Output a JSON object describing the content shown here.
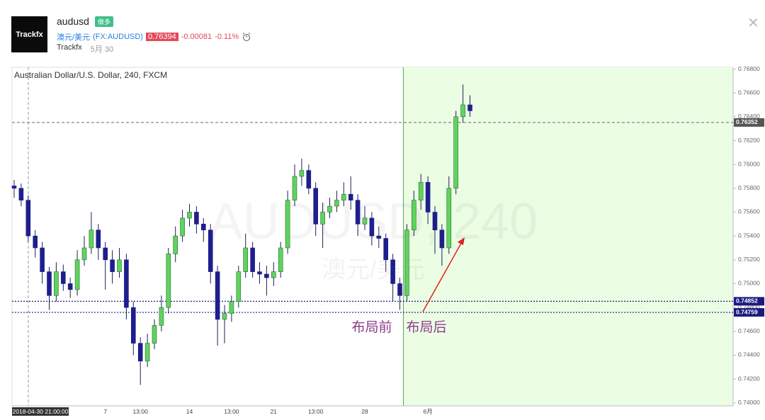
{
  "header": {
    "logo": "Trackfx",
    "symbol": "audusd",
    "badge": "做多",
    "name": "澳元/美元",
    "ticker": "(FX:AUDUSD)",
    "price": "0.76394",
    "change": "-0.00081",
    "change_pct": "-0.11%",
    "author": "Trackfx",
    "date": "5月 30"
  },
  "chart_data": {
    "type": "candlestick",
    "title": "Australian Dollar/U.S. Dollar, 240, FXCM",
    "watermark": "AUDUSD, 240",
    "watermark_sub": "澳元/美元",
    "categories": [
      "2018-04-30 21:00:00",
      null,
      null,
      null,
      null,
      null,
      null,
      null,
      null,
      null,
      null,
      null,
      null,
      "7",
      null,
      null,
      null,
      null,
      "13:00",
      null,
      null,
      null,
      null,
      null,
      null,
      "14",
      null,
      null,
      null,
      null,
      null,
      "13:00",
      null,
      null,
      null,
      null,
      null,
      "21",
      null,
      null,
      null,
      null,
      null,
      "13:00",
      null,
      null,
      null,
      null,
      null,
      null,
      "28",
      null,
      null,
      null,
      null,
      null,
      null,
      null,
      null,
      "6月",
      null,
      null,
      null,
      null,
      null,
      null
    ],
    "open": [
      0.7582,
      0.758,
      0.757,
      0.754,
      0.753,
      0.751,
      0.749,
      0.751,
      0.75,
      0.7495,
      0.752,
      0.753,
      0.7545,
      0.753,
      0.752,
      0.751,
      0.752,
      0.748,
      0.745,
      0.7435,
      0.745,
      0.7465,
      0.748,
      0.7525,
      0.754,
      0.7555,
      0.756,
      0.755,
      0.7545,
      0.751,
      0.747,
      0.7475,
      0.7485,
      0.751,
      0.753,
      0.751,
      0.7508,
      0.7505,
      0.751,
      0.753,
      0.757,
      0.759,
      0.7595,
      0.758,
      0.755,
      0.756,
      0.7565,
      0.757,
      0.7575,
      0.757,
      0.755,
      0.7555,
      0.754,
      0.7538,
      0.752,
      0.75,
      0.749,
      0.7545,
      0.757,
      0.7585,
      0.756,
      0.7545,
      0.753,
      0.758,
      0.764,
      0.765
    ],
    "high": [
      0.7587,
      0.7584,
      0.7574,
      0.7545,
      0.7535,
      0.7514,
      0.7518,
      0.7516,
      0.7505,
      0.7528,
      0.754,
      0.756,
      0.755,
      0.7535,
      0.7528,
      0.753,
      0.7525,
      0.7485,
      0.7455,
      0.7458,
      0.747,
      0.749,
      0.753,
      0.7548,
      0.7562,
      0.7567,
      0.7565,
      0.7555,
      0.755,
      0.7515,
      0.7482,
      0.749,
      0.7515,
      0.7542,
      0.7535,
      0.7518,
      0.7515,
      0.7518,
      0.7535,
      0.7578,
      0.76,
      0.7605,
      0.76,
      0.7585,
      0.7568,
      0.7572,
      0.7578,
      0.7585,
      0.759,
      0.7575,
      0.7565,
      0.756,
      0.7548,
      0.7542,
      0.7525,
      0.7505,
      0.755,
      0.7578,
      0.7592,
      0.759,
      0.7565,
      0.755,
      0.759,
      0.7645,
      0.7667,
      0.7658
    ],
    "low": [
      0.7572,
      0.7565,
      0.7535,
      0.7522,
      0.75,
      0.7478,
      0.7485,
      0.7494,
      0.7488,
      0.749,
      0.7515,
      0.7525,
      0.752,
      0.7495,
      0.75,
      0.7505,
      0.747,
      0.744,
      0.7415,
      0.743,
      0.7445,
      0.746,
      0.7475,
      0.7518,
      0.7535,
      0.7548,
      0.7542,
      0.7535,
      0.75,
      0.7448,
      0.745,
      0.7468,
      0.748,
      0.7505,
      0.7505,
      0.75,
      0.749,
      0.7498,
      0.7505,
      0.7525,
      0.7565,
      0.7582,
      0.7575,
      0.754,
      0.753,
      0.7555,
      0.756,
      0.7565,
      0.7562,
      0.754,
      0.7545,
      0.7532,
      0.753,
      0.751,
      0.7485,
      0.7478,
      0.7485,
      0.754,
      0.7562,
      0.755,
      0.7525,
      0.7515,
      0.7525,
      0.7575,
      0.7635,
      0.764
    ],
    "close": [
      0.758,
      0.757,
      0.754,
      0.753,
      0.751,
      0.749,
      0.751,
      0.75,
      0.7495,
      0.752,
      0.753,
      0.7545,
      0.753,
      0.752,
      0.751,
      0.752,
      0.748,
      0.745,
      0.7435,
      0.745,
      0.7465,
      0.748,
      0.7525,
      0.754,
      0.7555,
      0.756,
      0.755,
      0.7545,
      0.751,
      0.747,
      0.7475,
      0.7485,
      0.751,
      0.753,
      0.751,
      0.7508,
      0.7505,
      0.751,
      0.753,
      0.757,
      0.759,
      0.7595,
      0.758,
      0.755,
      0.756,
      0.7565,
      0.757,
      0.7575,
      0.757,
      0.755,
      0.7555,
      0.754,
      0.7538,
      0.752,
      0.75,
      0.749,
      0.7545,
      0.757,
      0.7585,
      0.756,
      0.7545,
      0.753,
      0.758,
      0.764,
      0.765,
      0.7645
    ],
    "up_color": "#5fd35f",
    "down_color": "#1e1e8c",
    "ylim": [
      0.73975,
      0.76815
    ],
    "yticks": [
      {
        "value": 0.74,
        "label": "0.74000"
      },
      {
        "value": 0.742,
        "label": "0.74200"
      },
      {
        "value": 0.744,
        "label": "0.74400"
      },
      {
        "value": 0.746,
        "label": "0.74600"
      },
      {
        "value": 0.748,
        "label": "0.74800"
      },
      {
        "value": 0.75,
        "label": "0.75000"
      },
      {
        "value": 0.752,
        "label": "0.75200"
      },
      {
        "value": 0.754,
        "label": "0.75400"
      },
      {
        "value": 0.756,
        "label": "0.75600"
      },
      {
        "value": 0.758,
        "label": "0.75800"
      },
      {
        "value": 0.76,
        "label": "0.76000"
      },
      {
        "value": 0.762,
        "label": "0.76200"
      },
      {
        "value": 0.764,
        "label": "0.76400"
      },
      {
        "value": 0.766,
        "label": "0.76600"
      },
      {
        "value": 0.768,
        "label": "0.76800"
      }
    ],
    "price_lines": [
      0.76352,
      0.74852,
      0.74759
    ],
    "price_line_colors": [
      "#555555",
      "#1a1a80",
      "#1a1a80"
    ],
    "annotations": [
      "布局前",
      "布局后"
    ],
    "annotation_color": "#8e3d8e"
  }
}
